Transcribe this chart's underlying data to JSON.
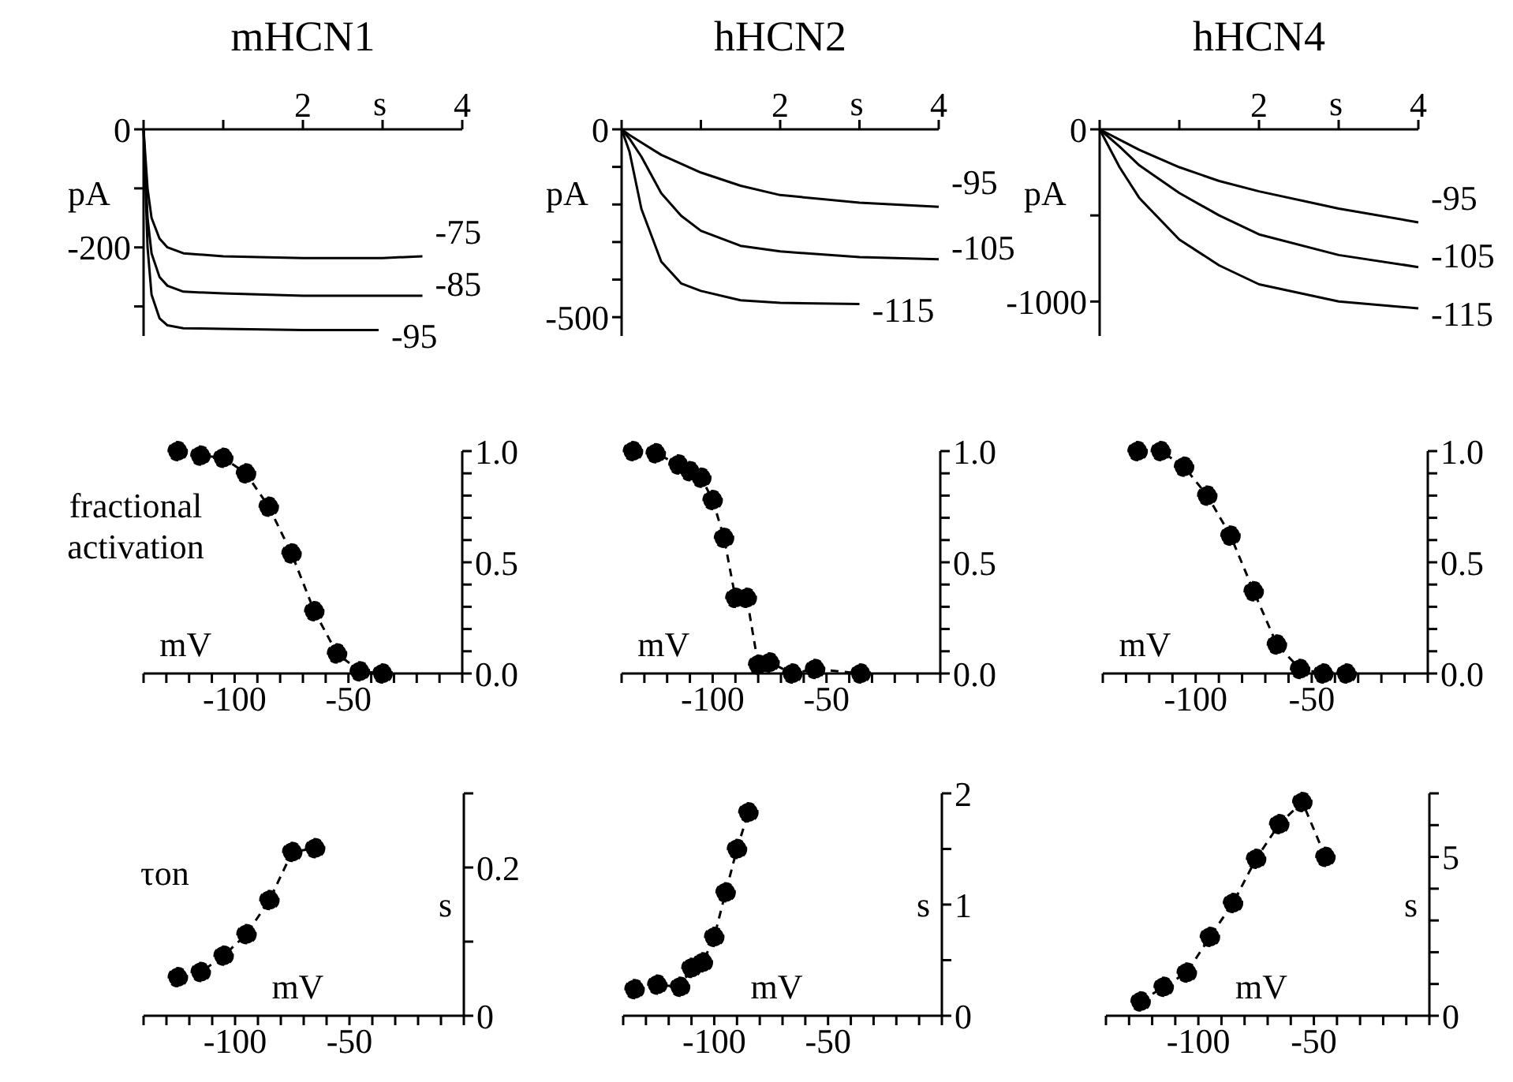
{
  "chart_data": [
    {
      "type": "line",
      "title": "mHCN1",
      "xlabel": "s",
      "ylabel": "pA",
      "xlim": [
        0,
        4
      ],
      "ylim": [
        -350,
        0
      ],
      "xticks": [
        {
          "value": 0,
          "label": null
        },
        {
          "value": 1,
          "label": null
        },
        2,
        {
          "value": 3,
          "label": null
        },
        4
      ],
      "yticks": [
        0,
        {
          "value": -100,
          "label": null
        },
        -200,
        {
          "value": -300,
          "label": null
        }
      ],
      "series": [
        {
          "name": "-75",
          "color": "#000000",
          "x": [
            0,
            0.05,
            0.1,
            0.2,
            0.3,
            0.5,
            1,
            2,
            3,
            3.5
          ],
          "values": [
            0,
            -100,
            -150,
            -185,
            -200,
            -210,
            -215,
            -218,
            -218,
            -215
          ]
        },
        {
          "name": "-85",
          "color": "#000000",
          "x": [
            0,
            0.05,
            0.1,
            0.2,
            0.3,
            0.5,
            1,
            2,
            3,
            3.5
          ],
          "values": [
            0,
            -150,
            -210,
            -250,
            -265,
            -275,
            -278,
            -282,
            -282,
            -282
          ]
        },
        {
          "name": "-95",
          "color": "#000000",
          "x": [
            0,
            0.05,
            0.1,
            0.2,
            0.3,
            0.5,
            1,
            2,
            2.95
          ],
          "values": [
            0,
            -200,
            -280,
            -320,
            -332,
            -337,
            -338,
            -340,
            -340
          ]
        }
      ]
    },
    {
      "type": "line",
      "title": "hHCN2",
      "xlabel": "s",
      "ylabel": "pA",
      "xlim": [
        0,
        4
      ],
      "ylim": [
        -550,
        0
      ],
      "xticks": [
        {
          "value": 0,
          "label": null
        },
        {
          "value": 1,
          "label": null
        },
        2,
        {
          "value": 3,
          "label": null
        },
        4
      ],
      "yticks": [
        0,
        {
          "value": -100,
          "label": null
        },
        {
          "value": -200,
          "label": null
        },
        {
          "value": -300,
          "label": null
        },
        {
          "value": -400,
          "label": null
        },
        -500
      ],
      "series": [
        {
          "name": "-95",
          "color": "#000000",
          "x": [
            0,
            0.1,
            0.25,
            0.5,
            1,
            1.5,
            2,
            3,
            4
          ],
          "values": [
            0,
            -15,
            -35,
            -68,
            -115,
            -150,
            -175,
            -195,
            -206
          ]
        },
        {
          "name": "-105",
          "color": "#000000",
          "x": [
            0,
            0.1,
            0.25,
            0.5,
            0.75,
            1,
            1.5,
            2,
            3,
            4
          ],
          "values": [
            0,
            -25,
            -73,
            -170,
            -230,
            -270,
            -310,
            -325,
            -340,
            -346
          ]
        },
        {
          "name": "-115",
          "color": "#000000",
          "x": [
            0,
            0.1,
            0.25,
            0.5,
            0.75,
            1,
            1.5,
            2,
            3
          ],
          "values": [
            0,
            -60,
            -212,
            -352,
            -410,
            -430,
            -455,
            -462,
            -465
          ]
        }
      ]
    },
    {
      "type": "line",
      "title": "hHCN4",
      "xlabel": "s",
      "ylabel": "pA",
      "xlim": [
        0,
        4
      ],
      "ylim": [
        -1200,
        0
      ],
      "xticks": [
        {
          "value": 0,
          "label": null
        },
        {
          "value": 1,
          "label": null
        },
        2,
        {
          "value": 3,
          "label": null
        },
        4
      ],
      "yticks": [
        0,
        {
          "value": -500,
          "label": null
        },
        -1000
      ],
      "series": [
        {
          "name": "-95",
          "color": "#000000",
          "x": [
            0,
            0.25,
            0.5,
            1,
            1.5,
            2,
            3,
            4
          ],
          "values": [
            0,
            -60,
            -120,
            -220,
            -300,
            -360,
            -460,
            -540
          ]
        },
        {
          "name": "-105",
          "color": "#000000",
          "x": [
            0,
            0.25,
            0.5,
            1,
            1.5,
            2,
            3,
            4
          ],
          "values": [
            0,
            -100,
            -210,
            -370,
            -500,
            -610,
            -730,
            -800
          ]
        },
        {
          "name": "-115",
          "color": "#000000",
          "x": [
            0,
            0.25,
            0.5,
            1,
            1.5,
            2,
            3,
            4
          ],
          "values": [
            0,
            -220,
            -400,
            -640,
            -790,
            -900,
            -1000,
            -1040
          ]
        }
      ]
    },
    {
      "type": "line",
      "xlabel": "mV",
      "annotations": [
        "fractional activation"
      ],
      "marker": "circle",
      "line_style": "dashed",
      "color": "#000000",
      "xlim": [
        -140,
        0
      ],
      "ylim": [
        0,
        1
      ],
      "xticks": [
        {
          "value": -140,
          "label": null
        },
        {
          "value": -130,
          "label": null
        },
        {
          "value": -120,
          "label": null
        },
        {
          "value": -110,
          "label": null
        },
        -100,
        {
          "value": -90,
          "label": null
        },
        {
          "value": -80,
          "label": null
        },
        {
          "value": -70,
          "label": null
        },
        {
          "value": -60,
          "label": null
        },
        -50,
        {
          "value": -40,
          "label": null
        },
        {
          "value": -30,
          "label": null
        },
        {
          "value": -20,
          "label": null
        },
        {
          "value": -10,
          "label": null
        },
        {
          "value": 0,
          "label": null
        }
      ],
      "yticks": [
        {
          "value": 0,
          "label": "0.0"
        },
        {
          "value": 0.1,
          "label": null
        },
        {
          "value": 0.2,
          "label": null
        },
        {
          "value": 0.3,
          "label": null
        },
        {
          "value": 0.4,
          "label": null
        },
        {
          "value": 0.5,
          "label": "0.5"
        },
        {
          "value": 0.6,
          "label": null
        },
        {
          "value": 0.7,
          "label": null
        },
        {
          "value": 0.8,
          "label": null
        },
        {
          "value": 0.9,
          "label": null
        },
        {
          "value": 1,
          "label": "1.0"
        }
      ],
      "x": [
        -125,
        -115,
        -105,
        -95,
        -85,
        -75,
        -65,
        -55,
        -45,
        -35
      ],
      "values": [
        1.0,
        0.98,
        0.97,
        0.9,
        0.75,
        0.54,
        0.28,
        0.09,
        0.01,
        0.0
      ]
    },
    {
      "type": "line",
      "xlabel": "mV",
      "marker": "circle",
      "line_style": "dashed",
      "color": "#000000",
      "xlim": [
        -140,
        0
      ],
      "ylim": [
        0,
        1
      ],
      "xticks": [
        {
          "value": -140,
          "label": null
        },
        {
          "value": -130,
          "label": null
        },
        {
          "value": -120,
          "label": null
        },
        {
          "value": -110,
          "label": null
        },
        -100,
        {
          "value": -90,
          "label": null
        },
        {
          "value": -80,
          "label": null
        },
        {
          "value": -70,
          "label": null
        },
        {
          "value": -60,
          "label": null
        },
        -50,
        {
          "value": -40,
          "label": null
        },
        {
          "value": -30,
          "label": null
        },
        {
          "value": -20,
          "label": null
        },
        {
          "value": -10,
          "label": null
        },
        {
          "value": 0,
          "label": null
        }
      ],
      "yticks": [
        {
          "value": 0,
          "label": "0.0"
        },
        {
          "value": 0.1,
          "label": null
        },
        {
          "value": 0.2,
          "label": null
        },
        {
          "value": 0.3,
          "label": null
        },
        {
          "value": 0.4,
          "label": null
        },
        {
          "value": 0.5,
          "label": "0.5"
        },
        {
          "value": 0.6,
          "label": null
        },
        {
          "value": 0.7,
          "label": null
        },
        {
          "value": 0.8,
          "label": null
        },
        {
          "value": 0.9,
          "label": null
        },
        {
          "value": 1,
          "label": "1.0"
        }
      ],
      "x": [
        -135,
        -125,
        -115,
        -110,
        -105,
        -100,
        -95,
        -90,
        -85,
        -80,
        -75,
        -65,
        -55,
        -35
      ],
      "values": [
        1.0,
        0.99,
        0.94,
        0.91,
        0.88,
        0.78,
        0.61,
        0.34,
        0.34,
        0.04,
        0.05,
        0.0,
        0.02,
        0.0
      ]
    },
    {
      "type": "line",
      "xlabel": "mV",
      "marker": "circle",
      "line_style": "dashed",
      "color": "#000000",
      "xlim": [
        -140,
        0
      ],
      "ylim": [
        0,
        1
      ],
      "xticks": [
        {
          "value": -140,
          "label": null
        },
        {
          "value": -130,
          "label": null
        },
        {
          "value": -120,
          "label": null
        },
        {
          "value": -110,
          "label": null
        },
        -100,
        {
          "value": -90,
          "label": null
        },
        {
          "value": -80,
          "label": null
        },
        {
          "value": -70,
          "label": null
        },
        {
          "value": -60,
          "label": null
        },
        -50,
        {
          "value": -40,
          "label": null
        },
        {
          "value": -30,
          "label": null
        },
        {
          "value": -20,
          "label": null
        },
        {
          "value": -10,
          "label": null
        },
        {
          "value": 0,
          "label": null
        }
      ],
      "yticks": [
        {
          "value": 0,
          "label": "0.0"
        },
        {
          "value": 0.1,
          "label": null
        },
        {
          "value": 0.2,
          "label": null
        },
        {
          "value": 0.3,
          "label": null
        },
        {
          "value": 0.4,
          "label": null
        },
        {
          "value": 0.5,
          "label": "0.5"
        },
        {
          "value": 0.6,
          "label": null
        },
        {
          "value": 0.7,
          "label": null
        },
        {
          "value": 0.8,
          "label": null
        },
        {
          "value": 0.9,
          "label": null
        },
        {
          "value": 1,
          "label": "1.0"
        }
      ],
      "x": [
        -125,
        -115,
        -105,
        -95,
        -85,
        -75,
        -65,
        -55,
        -45,
        -35
      ],
      "values": [
        1.0,
        1.0,
        0.93,
        0.8,
        0.62,
        0.37,
        0.13,
        0.02,
        0.0,
        0.0
      ]
    },
    {
      "type": "line",
      "xlabel": "mV",
      "ylabel": "s",
      "annotations": [
        "τon"
      ],
      "marker": "circle",
      "line_style": "dashed",
      "color": "#000000",
      "xlim": [
        -140,
        0
      ],
      "ylim": [
        0,
        0.3
      ],
      "xticks": [
        {
          "value": -140,
          "label": null
        },
        {
          "value": -130,
          "label": null
        },
        {
          "value": -120,
          "label": null
        },
        {
          "value": -110,
          "label": null
        },
        -100,
        {
          "value": -90,
          "label": null
        },
        {
          "value": -80,
          "label": null
        },
        {
          "value": -70,
          "label": null
        },
        {
          "value": -60,
          "label": null
        },
        -50,
        {
          "value": -40,
          "label": null
        },
        {
          "value": -30,
          "label": null
        },
        {
          "value": -20,
          "label": null
        },
        {
          "value": -10,
          "label": null
        },
        {
          "value": 0,
          "label": null
        }
      ],
      "yticks": [
        0,
        {
          "value": 0.1,
          "label": null
        },
        0.2,
        {
          "value": 0.3,
          "label": null
        }
      ],
      "x": [
        -125,
        -115,
        -105,
        -95,
        -85,
        -75,
        -65
      ],
      "values": [
        0.052,
        0.059,
        0.081,
        0.11,
        0.156,
        0.221,
        0.226
      ]
    },
    {
      "type": "line",
      "xlabel": "mV",
      "ylabel": "s",
      "marker": "circle",
      "line_style": "dashed",
      "color": "#000000",
      "xlim": [
        -140,
        0
      ],
      "ylim": [
        0,
        2
      ],
      "xticks": [
        {
          "value": -140,
          "label": null
        },
        {
          "value": -130,
          "label": null
        },
        {
          "value": -120,
          "label": null
        },
        {
          "value": -110,
          "label": null
        },
        -100,
        {
          "value": -90,
          "label": null
        },
        {
          "value": -80,
          "label": null
        },
        {
          "value": -70,
          "label": null
        },
        {
          "value": -60,
          "label": null
        },
        -50,
        {
          "value": -40,
          "label": null
        },
        {
          "value": -30,
          "label": null
        },
        {
          "value": -20,
          "label": null
        },
        {
          "value": -10,
          "label": null
        },
        {
          "value": 0,
          "label": null
        }
      ],
      "yticks": [
        0,
        {
          "value": 0.5,
          "label": null
        },
        1,
        {
          "value": 1.5,
          "label": null
        },
        2
      ],
      "x": [
        -135,
        -125,
        -115,
        -110,
        -105,
        -100,
        -95,
        -90,
        -85
      ],
      "values": [
        0.24,
        0.28,
        0.26,
        0.43,
        0.48,
        0.71,
        1.11,
        1.5,
        1.83
      ]
    },
    {
      "type": "line",
      "xlabel": "mV",
      "ylabel": "s",
      "marker": "circle",
      "line_style": "dashed",
      "color": "#000000",
      "xlim": [
        -140,
        0
      ],
      "ylim": [
        0,
        7
      ],
      "xticks": [
        {
          "value": -140,
          "label": null
        },
        {
          "value": -130,
          "label": null
        },
        {
          "value": -120,
          "label": null
        },
        {
          "value": -110,
          "label": null
        },
        -100,
        {
          "value": -90,
          "label": null
        },
        {
          "value": -80,
          "label": null
        },
        {
          "value": -70,
          "label": null
        },
        {
          "value": -60,
          "label": null
        },
        -50,
        {
          "value": -40,
          "label": null
        },
        {
          "value": -30,
          "label": null
        },
        {
          "value": -20,
          "label": null
        },
        {
          "value": -10,
          "label": null
        },
        {
          "value": 0,
          "label": null
        }
      ],
      "yticks": [
        0,
        {
          "value": 1,
          "label": null
        },
        {
          "value": 2,
          "label": null
        },
        {
          "value": 3,
          "label": null
        },
        {
          "value": 4,
          "label": null
        },
        5,
        {
          "value": 6,
          "label": null
        },
        {
          "value": 7,
          "label": null
        }
      ],
      "x": [
        -125,
        -115,
        -105,
        -95,
        -85,
        -75,
        -65,
        -55,
        -45
      ],
      "values": [
        0.45,
        0.91,
        1.36,
        2.48,
        3.55,
        4.94,
        6.03,
        6.73,
        5.0
      ]
    }
  ]
}
